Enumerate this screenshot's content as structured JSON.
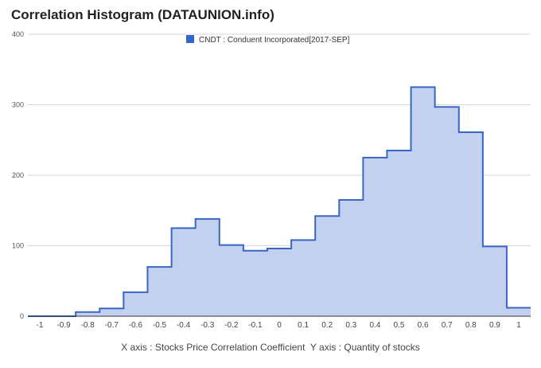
{
  "chart_data": {
    "type": "area",
    "title": "Correlation Histogram (DATAUNION.info)",
    "legend": {
      "label": "CNDT : Conduent Incorporated[2017-SEP]",
      "position": "top"
    },
    "x_caption": "X axis : Stocks Price Correlation Coefficient",
    "y_caption": "Y axis : Quantity of stocks",
    "caption_separator": "  ",
    "x": [
      -1,
      -0.9,
      -0.8,
      -0.7,
      -0.6,
      -0.5,
      -0.4,
      -0.3,
      -0.2,
      -0.1,
      0,
      0.1,
      0.2,
      0.3,
      0.4,
      0.5,
      0.6,
      0.7,
      0.8,
      0.9,
      1
    ],
    "x_tick_labels": [
      "-1",
      "-0.9",
      "-0.8",
      "-0.7",
      "-0.6",
      "-0.5",
      "-0.4",
      "-0.3",
      "-0.2",
      "-0.1",
      "0",
      "0.1",
      "0.2",
      "0.3",
      "0.4",
      "0.5",
      "0.6",
      "0.7",
      "0.8",
      "0.9",
      "1"
    ],
    "values": [
      0,
      0,
      6,
      11,
      34,
      70,
      125,
      138,
      101,
      93,
      96,
      108,
      142,
      165,
      225,
      235,
      325,
      297,
      261,
      99,
      12
    ],
    "ylim": [
      0,
      400
    ],
    "y_ticks": [
      0,
      100,
      200,
      300,
      400
    ],
    "grid": true,
    "colors": {
      "line": "#3a66c4",
      "fill": "#c3d0f0",
      "grid": "#d6d6d6",
      "legend_swatch": "#3366cc"
    }
  }
}
